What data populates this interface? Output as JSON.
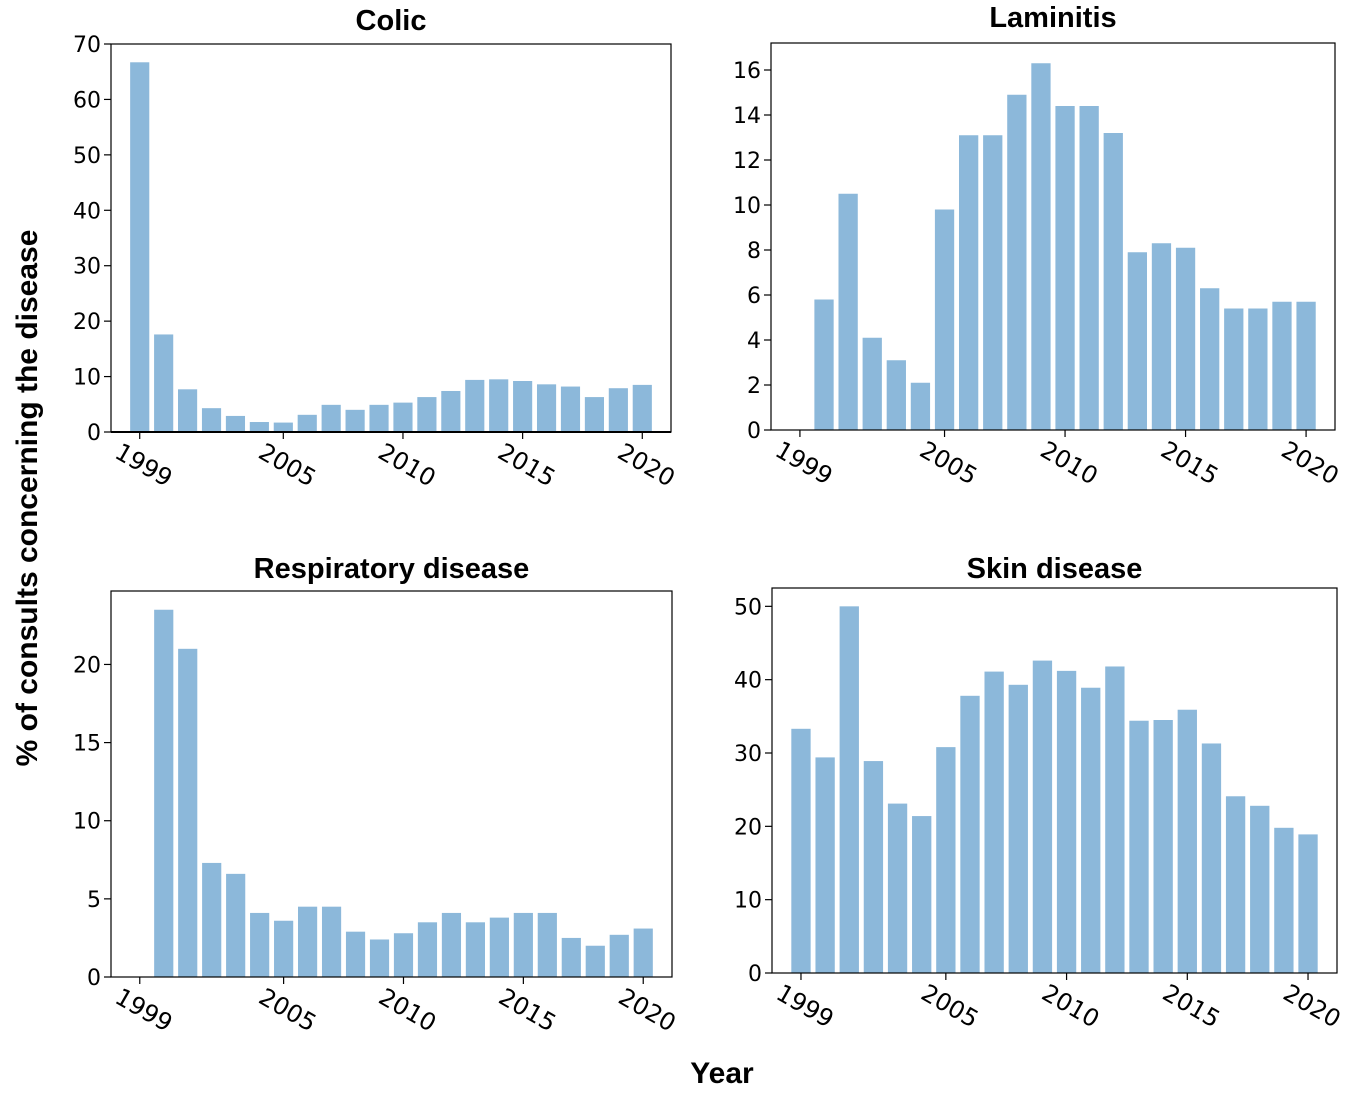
{
  "figure": {
    "ylabel": "% of consults concerning the disease",
    "xlabel": "Year"
  },
  "chart_data": [
    {
      "type": "bar",
      "title": "Colic",
      "x": [
        1999,
        2000,
        2001,
        2002,
        2003,
        2004,
        2005,
        2006,
        2007,
        2008,
        2009,
        2010,
        2011,
        2012,
        2013,
        2014,
        2015,
        2016,
        2017,
        2018,
        2019,
        2020
      ],
      "values": [
        66.7,
        17.6,
        7.7,
        4.3,
        2.9,
        1.8,
        1.7,
        3.1,
        4.9,
        4.0,
        4.9,
        5.3,
        6.3,
        7.4,
        9.4,
        9.5,
        9.2,
        8.6,
        8.2,
        6.3,
        7.9,
        8.5
      ],
      "ylim": [
        0,
        70
      ],
      "yticks": [
        0,
        10,
        20,
        30,
        40,
        50,
        60,
        70
      ],
      "xticks": [
        1999,
        2005,
        2010,
        2015,
        2020
      ],
      "grid": false
    },
    {
      "type": "bar",
      "title": "Laminitis",
      "x": [
        1999,
        2000,
        2001,
        2002,
        2003,
        2004,
        2005,
        2006,
        2007,
        2008,
        2009,
        2010,
        2011,
        2012,
        2013,
        2014,
        2015,
        2016,
        2017,
        2018,
        2019,
        2020
      ],
      "values": [
        0,
        5.8,
        10.5,
        4.1,
        3.1,
        2.1,
        9.8,
        13.1,
        13.1,
        14.9,
        16.3,
        14.4,
        14.4,
        13.2,
        7.9,
        8.3,
        8.1,
        6.3,
        5.4,
        5.4,
        5.7,
        5.7
      ],
      "ylim": [
        0,
        17.2
      ],
      "yticks": [
        0,
        2,
        4,
        6,
        8,
        10,
        12,
        14,
        16
      ],
      "xticks": [
        1999,
        2005,
        2010,
        2015,
        2020
      ],
      "grid": false
    },
    {
      "type": "bar",
      "title": "Respiratory disease",
      "x": [
        1999,
        2000,
        2001,
        2002,
        2003,
        2004,
        2005,
        2006,
        2007,
        2008,
        2009,
        2010,
        2011,
        2012,
        2013,
        2014,
        2015,
        2016,
        2017,
        2018,
        2019,
        2020
      ],
      "values": [
        0,
        23.5,
        21.0,
        7.3,
        6.6,
        4.1,
        3.6,
        4.5,
        4.5,
        2.9,
        2.4,
        2.8,
        3.5,
        4.1,
        3.5,
        3.8,
        4.1,
        4.1,
        2.5,
        2.0,
        2.7,
        3.1
      ],
      "ylim": [
        0,
        24.7
      ],
      "yticks": [
        0,
        5,
        10,
        15,
        20
      ],
      "xticks": [
        1999,
        2005,
        2010,
        2015,
        2020
      ],
      "grid": false
    },
    {
      "type": "bar",
      "title": "Skin disease",
      "x": [
        1999,
        2000,
        2001,
        2002,
        2003,
        2004,
        2005,
        2006,
        2007,
        2008,
        2009,
        2010,
        2011,
        2012,
        2013,
        2014,
        2015,
        2016,
        2017,
        2018,
        2019,
        2020
      ],
      "values": [
        33.3,
        29.4,
        50.0,
        28.9,
        23.1,
        21.4,
        30.8,
        37.8,
        41.1,
        39.3,
        42.6,
        41.2,
        38.9,
        41.8,
        34.4,
        34.5,
        35.9,
        31.3,
        24.1,
        22.8,
        19.8,
        18.9
      ],
      "ylim": [
        0,
        52.5
      ],
      "yticks": [
        0,
        10,
        20,
        30,
        40,
        50
      ],
      "xticks": [
        1999,
        2005,
        2010,
        2015,
        2020
      ],
      "grid": false
    }
  ]
}
